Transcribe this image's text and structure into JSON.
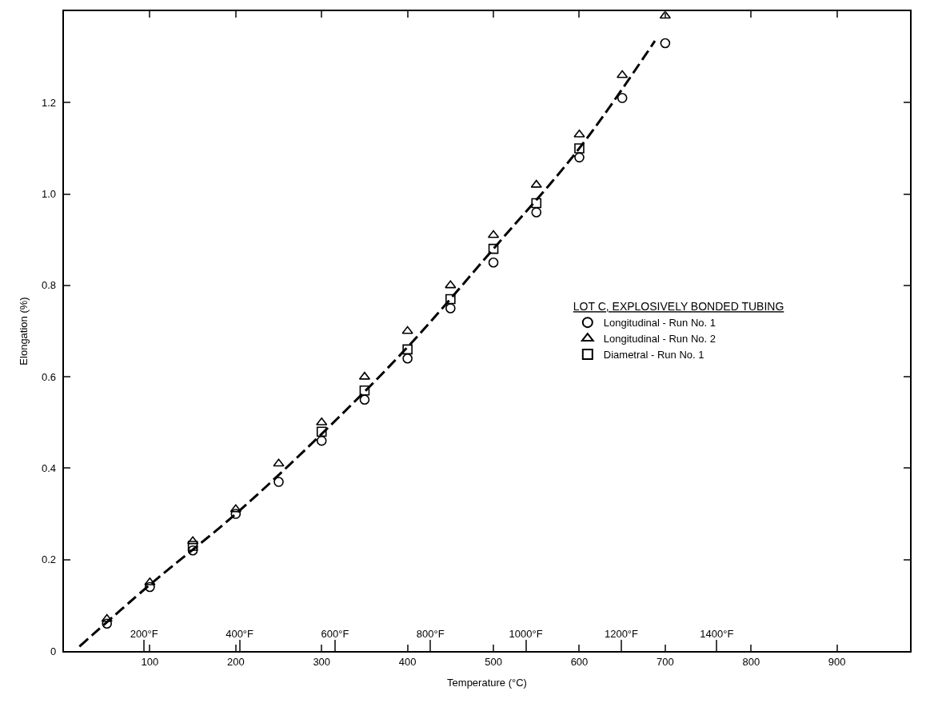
{
  "chart_data": {
    "type": "scatter",
    "xlabel": "Temperature (°C)",
    "ylabel": "Elongation (%)",
    "legend_title": "LOT C, EXPLOSIVELY BONDED TUBING",
    "legend": "right",
    "xlim": [
      0,
      985
    ],
    "xticks": [
      100,
      200,
      300,
      400,
      500,
      600,
      700,
      800,
      900
    ],
    "ylim": [
      0,
      1.4
    ],
    "yticks": [
      0,
      0.2,
      0.4,
      0.6,
      0.8,
      {
        "value": 1.0,
        "label": "1.0"
      },
      1.2
    ],
    "x2lim": [
      32,
      1805
    ],
    "x2ticks": [
      {
        "value": 200,
        "label": "200°F"
      },
      {
        "value": 400,
        "label": "400°F"
      },
      {
        "value": 600,
        "label": "600°F"
      },
      {
        "value": 800,
        "label": "800°F"
      },
      {
        "value": 1000,
        "label": "1000°F"
      },
      {
        "value": 1200,
        "label": "1200°F"
      },
      {
        "value": 1400,
        "label": "1400°F"
      }
    ],
    "series": [
      {
        "name": "Longitudinal - Run No. 1",
        "color": "#000000",
        "marker": "circle",
        "x": [
          50,
          100,
          150,
          200,
          250,
          300,
          350,
          400,
          450,
          500,
          550,
          600,
          650,
          700
        ],
        "values": [
          0.06,
          0.14,
          0.22,
          0.3,
          0.37,
          0.46,
          0.55,
          0.64,
          0.75,
          0.85,
          0.96,
          1.08,
          1.21,
          1.33
        ]
      },
      {
        "name": "Longitudinal - Run No. 2",
        "color": "#000000",
        "marker": "triangle",
        "x": [
          50,
          100,
          150,
          200,
          250,
          300,
          350,
          400,
          450,
          500,
          550,
          600,
          650,
          700
        ],
        "values": [
          0.07,
          0.15,
          0.24,
          0.31,
          0.41,
          0.5,
          0.6,
          0.7,
          0.8,
          0.91,
          1.02,
          1.13,
          1.26,
          1.39
        ]
      },
      {
        "name": "Diametral - Run No. 1",
        "color": "#000000",
        "marker": "square",
        "x": [
          150,
          300,
          350,
          400,
          450,
          500,
          550,
          600
        ],
        "values": [
          0.23,
          0.48,
          0.57,
          0.66,
          0.77,
          0.88,
          0.98,
          1.1
        ]
      },
      {
        "type": "line",
        "color": "#000000",
        "marker": "none",
        "line_style": "dashed",
        "x": [
          18,
          100,
          200,
          300,
          400,
          500,
          600,
          688
        ],
        "values": [
          0.01,
          0.145,
          0.3,
          0.475,
          0.665,
          0.88,
          1.1,
          1.335
        ]
      }
    ]
  }
}
